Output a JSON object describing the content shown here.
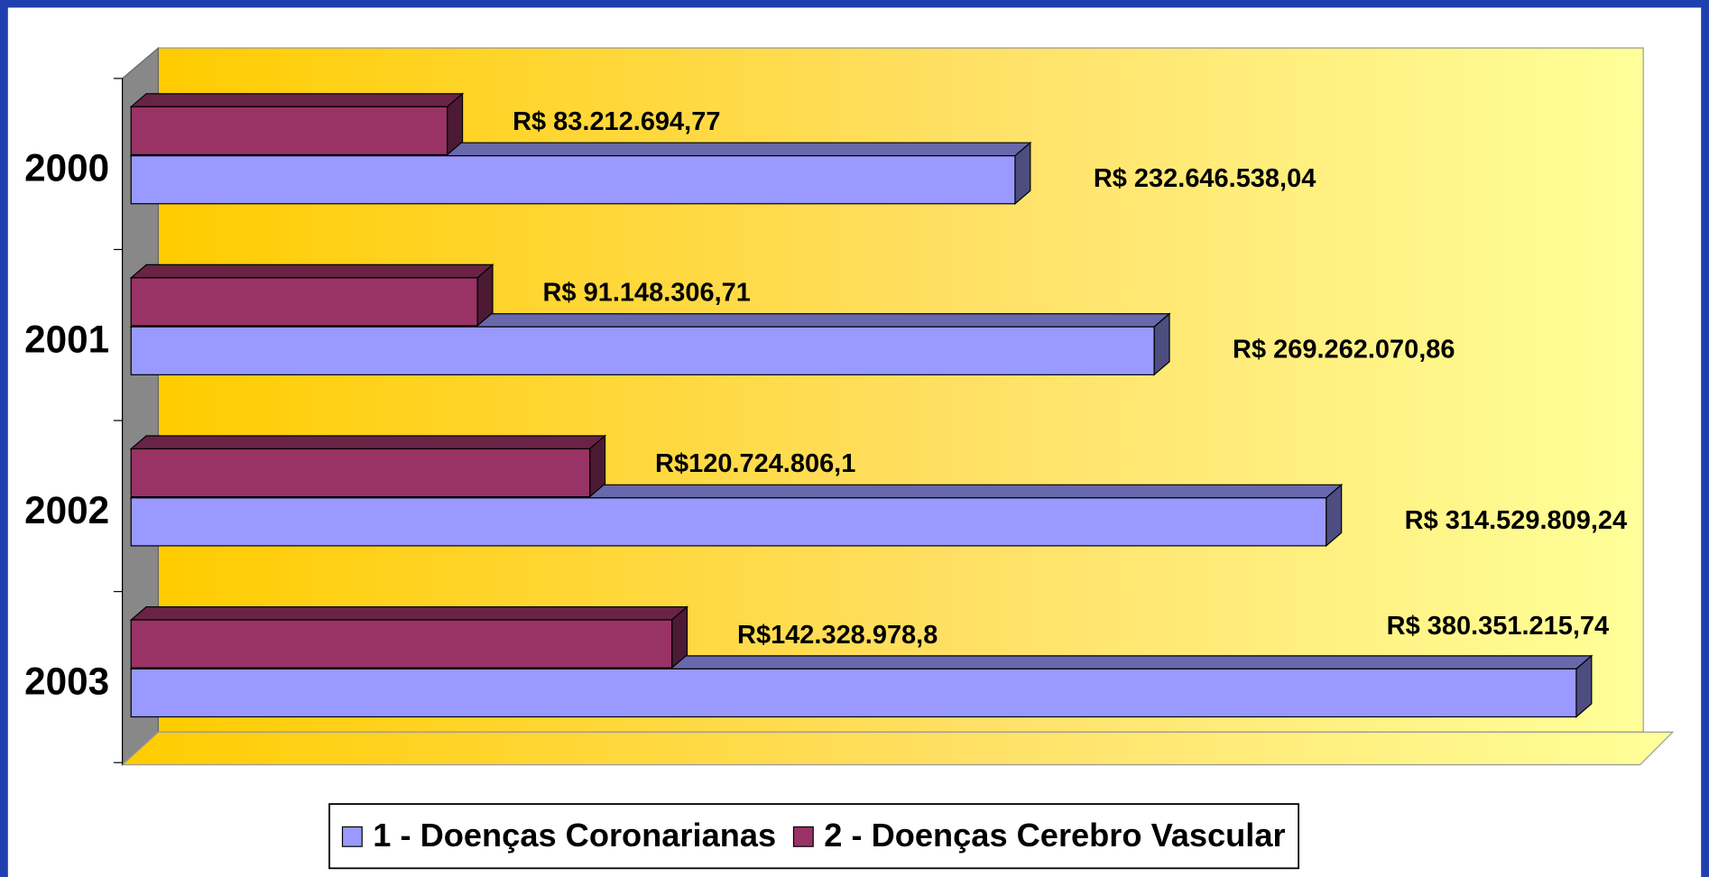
{
  "chart_data": {
    "type": "bar",
    "orientation": "horizontal",
    "categories": [
      "2000",
      "2001",
      "2002",
      "2003"
    ],
    "xlim": [
      0,
      400000000
    ],
    "legend": "bottom",
    "series": [
      {
        "name": "1 - Doenças Coronarianas",
        "color": "#9999ff",
        "values": [
          232646538.04,
          269262070.86,
          314529809.24,
          380351215.74
        ],
        "value_labels": [
          "R$ 232.646.538,04",
          "R$ 269.262.070,86",
          "R$ 314.529.809,24",
          "R$ 380.351.215,74"
        ]
      },
      {
        "name": "2 - Doenças Cerebro Vascular",
        "color": "#993366",
        "values": [
          83212694.77,
          91148306.71,
          120724806.1,
          142328978.8
        ],
        "value_labels": [
          "R$ 83.212.694,77",
          "R$ 91.148.306,71",
          "R$120.724.806,1",
          "R$142.328.978,8"
        ]
      }
    ]
  }
}
